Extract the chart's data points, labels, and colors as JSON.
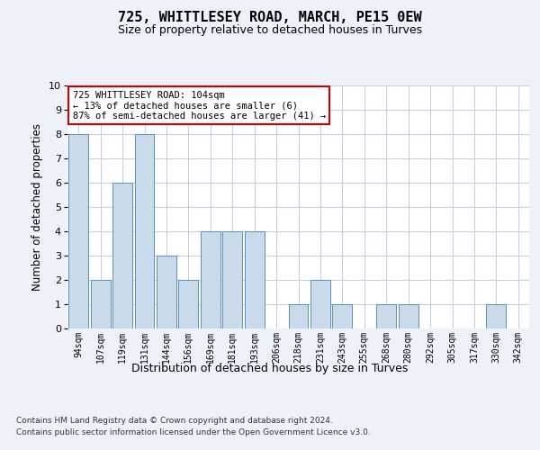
{
  "title1": "725, WHITTLESEY ROAD, MARCH, PE15 0EW",
  "title2": "Size of property relative to detached houses in Turves",
  "xlabel": "Distribution of detached houses by size in Turves",
  "ylabel": "Number of detached properties",
  "categories": [
    "94sqm",
    "107sqm",
    "119sqm",
    "131sqm",
    "144sqm",
    "156sqm",
    "169sqm",
    "181sqm",
    "193sqm",
    "206sqm",
    "218sqm",
    "231sqm",
    "243sqm",
    "255sqm",
    "268sqm",
    "280sqm",
    "292sqm",
    "305sqm",
    "317sqm",
    "330sqm",
    "342sqm"
  ],
  "values": [
    8,
    2,
    6,
    8,
    3,
    2,
    4,
    4,
    4,
    0,
    1,
    2,
    1,
    0,
    1,
    1,
    0,
    0,
    0,
    1,
    0
  ],
  "bar_color": "#c9daea",
  "bar_edge_color": "#5a8fc2",
  "ylim": [
    0,
    10
  ],
  "yticks": [
    0,
    1,
    2,
    3,
    4,
    5,
    6,
    7,
    8,
    9,
    10
  ],
  "annotation_text": "725 WHITTLESEY ROAD: 104sqm\n← 13% of detached houses are smaller (6)\n87% of semi-detached houses are larger (41) →",
  "footnote1": "Contains HM Land Registry data © Crown copyright and database right 2024.",
  "footnote2": "Contains public sector information licensed under the Open Government Licence v3.0.",
  "bg_color": "#eef2f8",
  "plot_bg_color": "#ffffff",
  "grid_color": "#c8d0dc",
  "annotation_border_color": "#cc0000",
  "title1_fontsize": 11,
  "title2_fontsize": 9,
  "xlabel_fontsize": 9,
  "ylabel_fontsize": 8.5,
  "tick_fontsize": 8,
  "xtick_fontsize": 7,
  "footnote_fontsize": 6.5
}
